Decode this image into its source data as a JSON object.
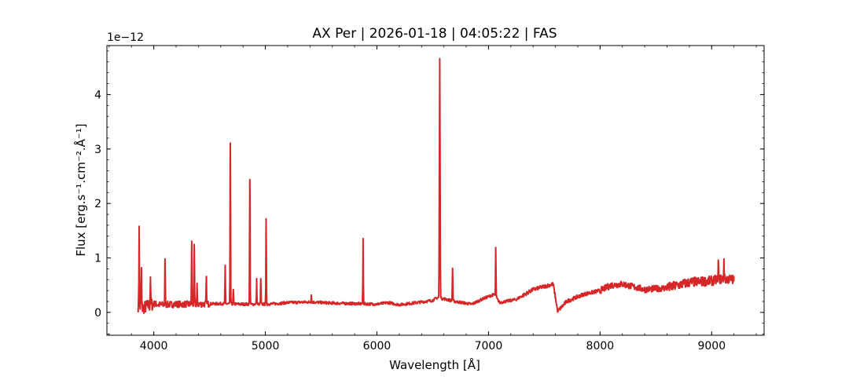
{
  "chart_data": {
    "type": "line",
    "title": "AX Per | 2026-01-18 | 04:05:22 | FAS",
    "xlabel": "Wavelength [Å]",
    "ylabel": "Flux [erg.s⁻¹.cm⁻².Å⁻¹]",
    "offset_label": "1e−12",
    "xlim": [
      3580,
      9470
    ],
    "ylim": [
      -0.42,
      4.9
    ],
    "x_ticks": [
      4000,
      5000,
      6000,
      7000,
      8000,
      9000
    ],
    "x_tick_labels": [
      "4000",
      "5000",
      "6000",
      "7000",
      "8000",
      "9000"
    ],
    "y_ticks": [
      0,
      1,
      2,
      3,
      4
    ],
    "y_tick_labels": [
      "0",
      "1",
      "2",
      "3",
      "4"
    ],
    "x_minor_step": 200,
    "y_minor_step": 0.2,
    "grid": false,
    "legend": "none",
    "color": "#d62728",
    "continuum": [
      [
        3860,
        0.12
      ],
      [
        3900,
        0.08
      ],
      [
        3950,
        0.12
      ],
      [
        4000,
        0.16
      ],
      [
        4050,
        0.14
      ],
      [
        4200,
        0.15
      ],
      [
        4400,
        0.15
      ],
      [
        4600,
        0.16
      ],
      [
        4800,
        0.15
      ],
      [
        5000,
        0.15
      ],
      [
        5100,
        0.16
      ],
      [
        5200,
        0.18
      ],
      [
        5400,
        0.19
      ],
      [
        5600,
        0.17
      ],
      [
        5800,
        0.16
      ],
      [
        6000,
        0.15
      ],
      [
        6100,
        0.18
      ],
      [
        6200,
        0.14
      ],
      [
        6400,
        0.19
      ],
      [
        6500,
        0.22
      ],
      [
        6540,
        0.27
      ],
      [
        6600,
        0.25
      ],
      [
        6700,
        0.2
      ],
      [
        6850,
        0.15
      ],
      [
        6950,
        0.25
      ],
      [
        7050,
        0.33
      ],
      [
        7100,
        0.18
      ],
      [
        7250,
        0.24
      ],
      [
        7400,
        0.42
      ],
      [
        7580,
        0.52
      ],
      [
        7620,
        0.02
      ],
      [
        7700,
        0.2
      ],
      [
        7850,
        0.33
      ],
      [
        8000,
        0.4
      ],
      [
        8100,
        0.5
      ],
      [
        8200,
        0.52
      ],
      [
        8400,
        0.42
      ],
      [
        8600,
        0.45
      ],
      [
        8800,
        0.55
      ],
      [
        9000,
        0.58
      ],
      [
        9100,
        0.62
      ],
      [
        9200,
        0.6
      ]
    ],
    "emission_lines": [
      {
        "x": 3869,
        "y": 1.58
      },
      {
        "x": 3889,
        "y": 0.82
      },
      {
        "x": 3970,
        "y": 0.65
      },
      {
        "x": 4101,
        "y": 0.98
      },
      {
        "x": 4340,
        "y": 1.28
      },
      {
        "x": 4363,
        "y": 1.25
      },
      {
        "x": 4388,
        "y": 0.5
      },
      {
        "x": 4471,
        "y": 0.66
      },
      {
        "x": 4640,
        "y": 0.84
      },
      {
        "x": 4686,
        "y": 3.11
      },
      {
        "x": 4713,
        "y": 0.42
      },
      {
        "x": 4861,
        "y": 2.44
      },
      {
        "x": 4922,
        "y": 0.6
      },
      {
        "x": 4959,
        "y": 0.62
      },
      {
        "x": 5007,
        "y": 1.72
      },
      {
        "x": 5412,
        "y": 0.32
      },
      {
        "x": 5876,
        "y": 1.35
      },
      {
        "x": 6563,
        "y": 4.66
      },
      {
        "x": 6678,
        "y": 0.81
      },
      {
        "x": 7065,
        "y": 1.19
      },
      {
        "x": 9060,
        "y": 0.95
      },
      {
        "x": 9110,
        "y": 0.98
      }
    ]
  }
}
